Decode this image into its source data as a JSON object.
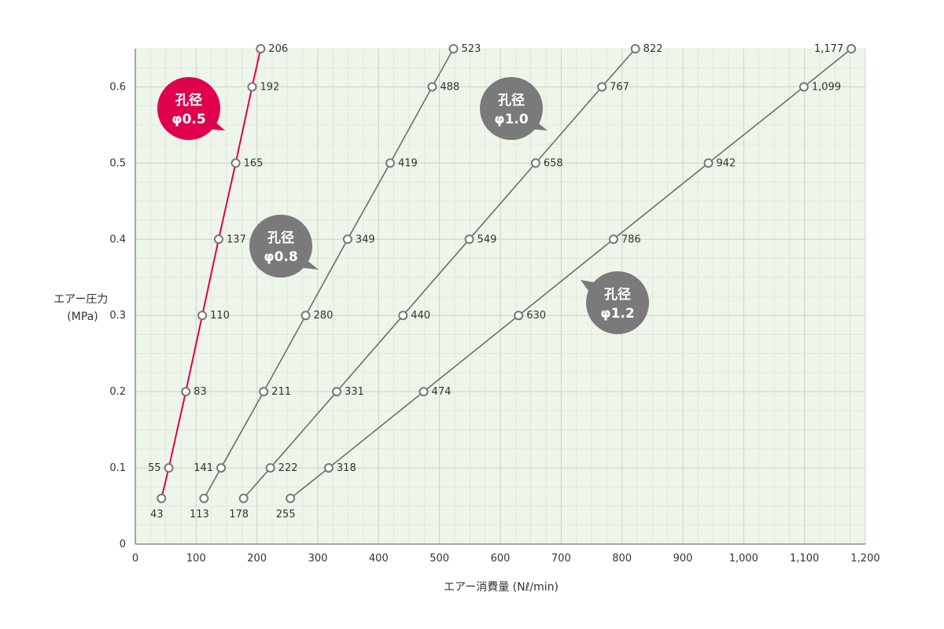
{
  "chart_data": {
    "type": "line",
    "xlabel": "エアー消費量 (Nℓ/min)",
    "ylabel_lines": [
      "エアー圧力",
      "(MPa)"
    ],
    "xlim": [
      0,
      1200
    ],
    "ylim": [
      0,
      0.65
    ],
    "x_ticks": [
      0,
      100,
      200,
      300,
      400,
      500,
      600,
      700,
      800,
      900,
      1000,
      1100,
      1200
    ],
    "x_tick_labels": [
      "0",
      "100",
      "200",
      "300",
      "400",
      "500",
      "600",
      "700",
      "800",
      "900",
      "1,000",
      "1,100",
      "1,200"
    ],
    "y_ticks": [
      0,
      0.1,
      0.2,
      0.3,
      0.4,
      0.5,
      0.6
    ],
    "y_tick_labels": [
      "0",
      "0.1",
      "0.2",
      "0.3",
      "0.4",
      "0.5",
      "0.6"
    ],
    "grid": true,
    "background_color": "#eef5ea",
    "grid_color": "#c9d4c4",
    "series": [
      {
        "name": "孔径φ0.5",
        "label_lines": [
          "孔径",
          "φ0.5"
        ],
        "color": "#e0004d",
        "points": [
          {
            "x": 43,
            "y": 0.06,
            "label": "43",
            "pos": "below"
          },
          {
            "x": 55,
            "y": 0.1,
            "label": "55",
            "pos": "left"
          },
          {
            "x": 83,
            "y": 0.2,
            "label": "83",
            "pos": "right"
          },
          {
            "x": 110,
            "y": 0.3,
            "label": "110",
            "pos": "right"
          },
          {
            "x": 137,
            "y": 0.4,
            "label": "137",
            "pos": "right"
          },
          {
            "x": 165,
            "y": 0.5,
            "label": "165",
            "pos": "right"
          },
          {
            "x": 192,
            "y": 0.6,
            "label": "192",
            "pos": "right"
          },
          {
            "x": 206,
            "y": 0.65,
            "label": "206",
            "pos": "right"
          }
        ]
      },
      {
        "name": "孔径φ0.8",
        "label_lines": [
          "孔径",
          "φ0.8"
        ],
        "color": "#6e6e6e",
        "points": [
          {
            "x": 113,
            "y": 0.06,
            "label": "113",
            "pos": "below"
          },
          {
            "x": 141,
            "y": 0.1,
            "label": "141",
            "pos": "left"
          },
          {
            "x": 211,
            "y": 0.2,
            "label": "211",
            "pos": "right"
          },
          {
            "x": 280,
            "y": 0.3,
            "label": "280",
            "pos": "right"
          },
          {
            "x": 349,
            "y": 0.4,
            "label": "349",
            "pos": "right"
          },
          {
            "x": 419,
            "y": 0.5,
            "label": "419",
            "pos": "right"
          },
          {
            "x": 488,
            "y": 0.6,
            "label": "488",
            "pos": "right"
          },
          {
            "x": 523,
            "y": 0.65,
            "label": "523",
            "pos": "right"
          }
        ]
      },
      {
        "name": "孔径φ1.0",
        "label_lines": [
          "孔径",
          "φ1.0"
        ],
        "color": "#6e6e6e",
        "points": [
          {
            "x": 178,
            "y": 0.06,
            "label": "178",
            "pos": "below"
          },
          {
            "x": 222,
            "y": 0.1,
            "label": "222",
            "pos": "right"
          },
          {
            "x": 331,
            "y": 0.2,
            "label": "331",
            "pos": "right"
          },
          {
            "x": 440,
            "y": 0.3,
            "label": "440",
            "pos": "right"
          },
          {
            "x": 549,
            "y": 0.4,
            "label": "549",
            "pos": "right"
          },
          {
            "x": 658,
            "y": 0.5,
            "label": "658",
            "pos": "right"
          },
          {
            "x": 767,
            "y": 0.6,
            "label": "767",
            "pos": "right"
          },
          {
            "x": 822,
            "y": 0.65,
            "label": "822",
            "pos": "right"
          }
        ]
      },
      {
        "name": "孔径φ1.2",
        "label_lines": [
          "孔径",
          "φ1.2"
        ],
        "color": "#6e6e6e",
        "points": [
          {
            "x": 255,
            "y": 0.06,
            "label": "255",
            "pos": "below"
          },
          {
            "x": 318,
            "y": 0.1,
            "label": "318",
            "pos": "right"
          },
          {
            "x": 474,
            "y": 0.2,
            "label": "474",
            "pos": "right"
          },
          {
            "x": 630,
            "y": 0.3,
            "label": "630",
            "pos": "right"
          },
          {
            "x": 786,
            "y": 0.4,
            "label": "786",
            "pos": "right"
          },
          {
            "x": 942,
            "y": 0.5,
            "label": "942",
            "pos": "right"
          },
          {
            "x": 1099,
            "y": 0.6,
            "label": "1,099",
            "pos": "right"
          },
          {
            "x": 1177,
            "y": 0.65,
            "label": "1,177",
            "pos": "left"
          }
        ]
      }
    ]
  }
}
